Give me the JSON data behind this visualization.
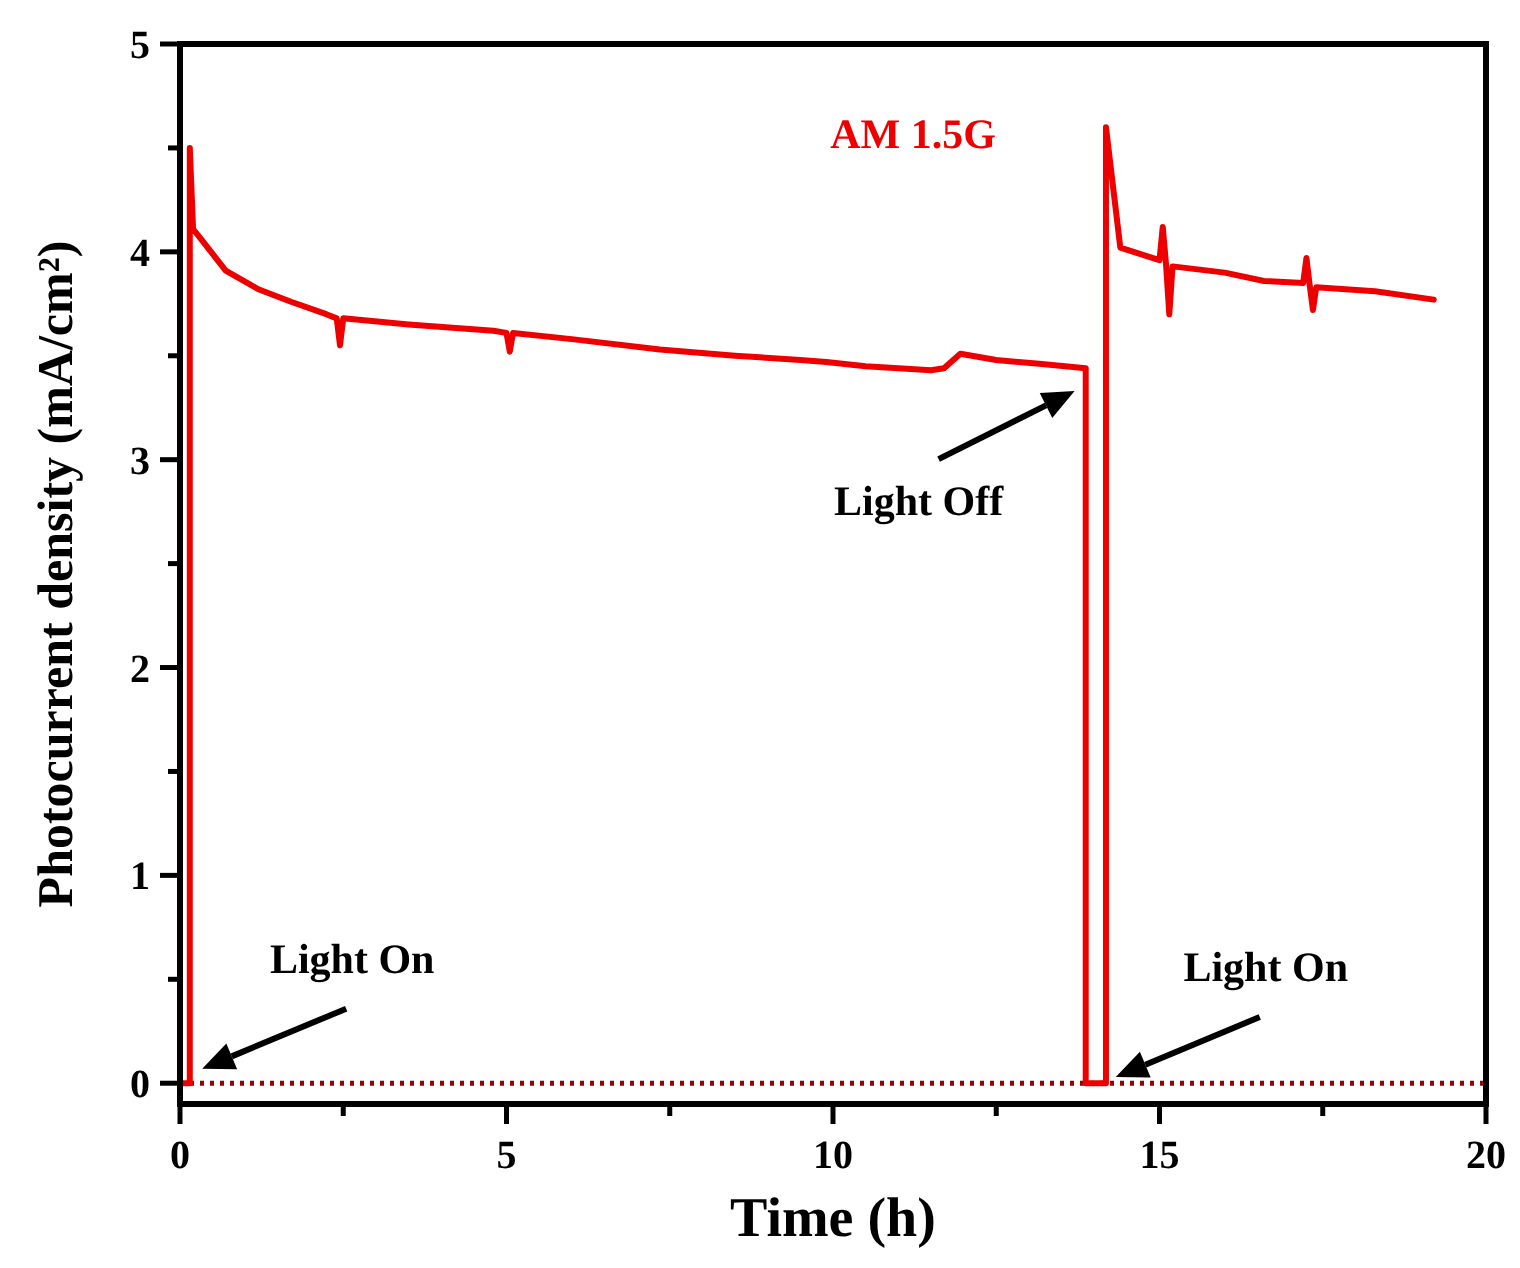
{
  "chart_data": {
    "type": "line",
    "xlabel": "Time (h)",
    "ylabel": "Photocurrent density (mA/cm²)",
    "xlim": [
      0,
      20
    ],
    "ylim": [
      -0.1,
      5
    ],
    "xticks": [
      0,
      {
        "value": 2.5,
        "label": null
      },
      5,
      {
        "value": 7.5,
        "label": null
      },
      10,
      {
        "value": 12.5,
        "label": null
      },
      15,
      {
        "value": 17.5,
        "label": null
      },
      20
    ],
    "yticks": [
      0,
      {
        "value": 0.5,
        "label": null
      },
      1,
      {
        "value": 1.5,
        "label": null
      },
      2,
      {
        "value": 2.5,
        "label": null
      },
      3,
      {
        "value": 3.5,
        "label": null
      },
      4,
      {
        "value": 4.5,
        "label": null
      },
      5
    ],
    "series": [
      {
        "name": "AM 1.5G",
        "color": "#ee0000",
        "x": [
          0,
          0.15,
          0.15,
          0.2,
          0.35,
          0.7,
          1.2,
          1.7,
          2.24,
          2.4,
          2.45,
          2.5,
          3.5,
          4.8,
          5.0,
          5.05,
          5.1,
          6.0,
          7.35,
          8.5,
          9.5,
          9.9,
          10.5,
          11.5,
          11.7,
          11.95,
          12.5,
          13.2,
          13.87,
          13.87,
          14.18,
          14.18,
          14.4,
          15.0,
          15.05,
          15.1,
          15.15,
          15.2,
          16.0,
          16.6,
          17.2,
          17.25,
          17.3,
          17.35,
          17.4,
          18.3,
          19.2
        ],
        "values": [
          0,
          0,
          4.5,
          4.11,
          4.05,
          3.91,
          3.82,
          3.76,
          3.7,
          3.68,
          3.55,
          3.68,
          3.65,
          3.62,
          3.61,
          3.52,
          3.61,
          3.58,
          3.53,
          3.5,
          3.48,
          3.47,
          3.45,
          3.43,
          3.44,
          3.51,
          3.48,
          3.46,
          3.44,
          0,
          0,
          4.6,
          4.02,
          3.96,
          4.12,
          3.94,
          3.7,
          3.93,
          3.9,
          3.86,
          3.85,
          3.97,
          3.84,
          3.72,
          3.83,
          3.81,
          3.77
        ]
      }
    ],
    "ref_lines": [
      {
        "axis": "y",
        "value": 0,
        "color": "#990000",
        "line_style": "dotted"
      }
    ],
    "annotations": [
      {
        "text": "Light On",
        "x": 0.34,
        "y": 0.07
      },
      {
        "text": "Light Off",
        "x": 13.7,
        "y": 3.33
      },
      {
        "text": "Light On",
        "x": 14.33,
        "y": 0.03
      }
    ],
    "marker": "none",
    "line_style": "solid",
    "grid": false,
    "legend": false
  }
}
